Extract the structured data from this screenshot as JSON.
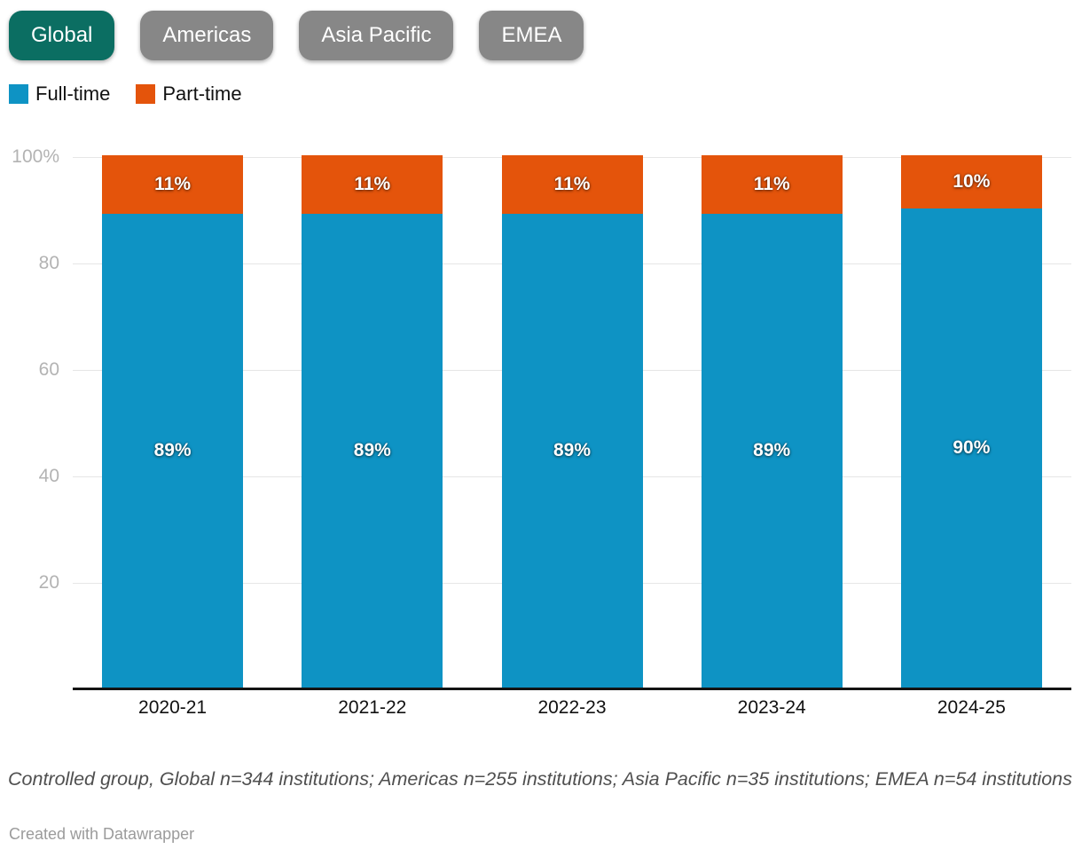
{
  "tabs": {
    "items": [
      {
        "label": "Global",
        "active": true
      },
      {
        "label": "Americas",
        "active": false
      },
      {
        "label": "Asia Pacific",
        "active": false
      },
      {
        "label": "EMEA",
        "active": false
      }
    ],
    "active_color": "#0b6e62",
    "inactive_color": "#878787"
  },
  "legend": {
    "items": [
      {
        "label": "Full-time",
        "color": "#0e93c4"
      },
      {
        "label": "Part-time",
        "color": "#e4540b"
      }
    ]
  },
  "chart_data": {
    "type": "bar",
    "stacked": true,
    "unit": "%",
    "title": "",
    "categories": [
      "2020-21",
      "2021-22",
      "2022-23",
      "2023-24",
      "2024-25"
    ],
    "series": [
      {
        "name": "Full-time",
        "color": "#0e93c4",
        "values": [
          89,
          89,
          89,
          89,
          90
        ]
      },
      {
        "name": "Part-time",
        "color": "#e4540b",
        "values": [
          11,
          11,
          11,
          11,
          10
        ]
      }
    ],
    "y_ticks": [
      {
        "value": 20,
        "label": "20"
      },
      {
        "value": 40,
        "label": "40"
      },
      {
        "value": 60,
        "label": "60"
      },
      {
        "value": 80,
        "label": "80"
      },
      {
        "value": 100,
        "label": "100%"
      }
    ],
    "ylim": [
      0,
      100
    ],
    "grid": true,
    "legend_position": "top-left",
    "bar_value_suffix": "%"
  },
  "footer": {
    "note": "Controlled group, Global n=344 institutions; Americas n=255 institutions; Asia Pacific n=35 institutions; EMEA n=54 institutions",
    "attribution": "Created with Datawrapper"
  }
}
